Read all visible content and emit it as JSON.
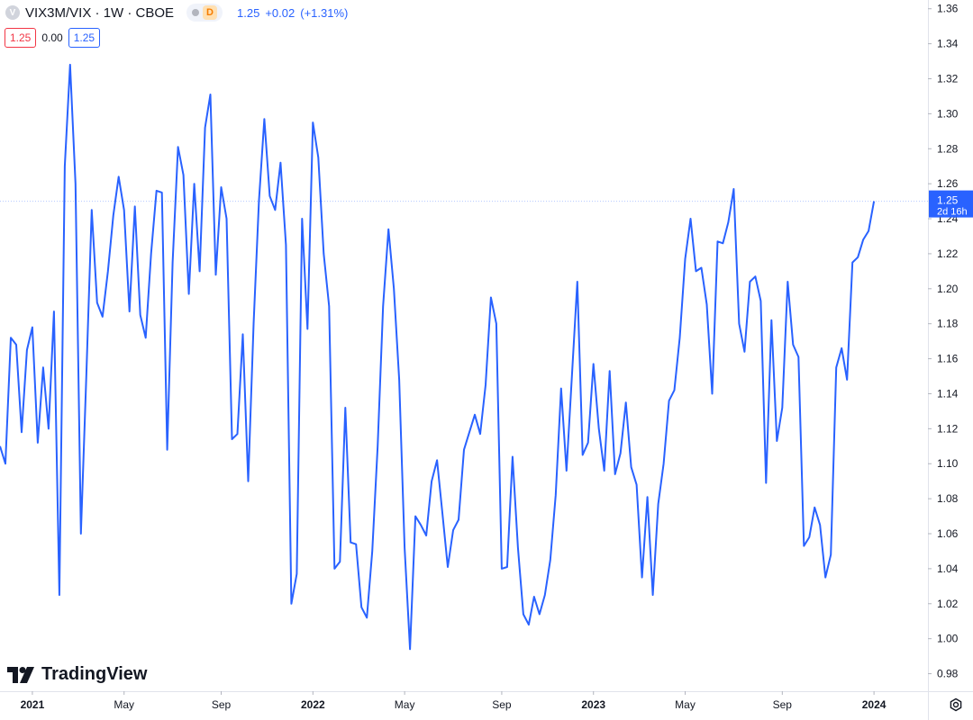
{
  "header": {
    "symbol_logo": "V",
    "title": "VIX3M/VIX · 1W · CBOE",
    "badge": "D",
    "last": "1.25",
    "change": "+0.02",
    "change_pct": "(+1.31%)"
  },
  "quote": {
    "bid": "1.25",
    "spread": "0.00",
    "ask": "1.25"
  },
  "price_label": {
    "value": "1.25",
    "countdown": "2d 16h"
  },
  "branding": {
    "name": "TradingView"
  },
  "icons": {
    "settings": "settings-icon",
    "logo": "tradingview-logo-icon"
  },
  "colors": {
    "line": "#2962ff",
    "grid": "#f0f3fa",
    "last_price_bg": "#2962ff",
    "bid": "#f23645",
    "ask": "#2962ff"
  },
  "chart_data": {
    "type": "line",
    "title": "VIX3M/VIX · 1W · CBOE",
    "xlabel": "",
    "ylabel": "",
    "ylim": [
      0.97,
      1.365
    ],
    "yticks": [
      0.98,
      1.0,
      1.02,
      1.04,
      1.06,
      1.08,
      1.1,
      1.12,
      1.14,
      1.16,
      1.18,
      1.2,
      1.22,
      1.24,
      1.26,
      1.28,
      1.3,
      1.32,
      1.34,
      1.36
    ],
    "ytick_labels": [
      "0.98",
      "1.00",
      "1.02",
      "1.04",
      "1.06",
      "1.08",
      "1.10",
      "1.12",
      "1.14",
      "1.16",
      "1.18",
      "1.20",
      "1.22",
      "1.24",
      "1.26",
      "1.28",
      "1.30",
      "1.32",
      "1.34",
      "1.36"
    ],
    "xticks": [
      {
        "label": "2021",
        "week": 0,
        "bold": true
      },
      {
        "label": "May",
        "week": 17,
        "bold": false
      },
      {
        "label": "Sep",
        "week": 35,
        "bold": false
      },
      {
        "label": "2022",
        "week": 52,
        "bold": true
      },
      {
        "label": "May",
        "week": 69,
        "bold": false
      },
      {
        "label": "Sep",
        "week": 87,
        "bold": false
      },
      {
        "label": "2023",
        "week": 104,
        "bold": true
      },
      {
        "label": "May",
        "week": 121,
        "bold": false
      },
      {
        "label": "Sep",
        "week": 139,
        "bold": false
      },
      {
        "label": "2024",
        "week": 156,
        "bold": true
      }
    ],
    "week_range": [
      -6,
      166
    ],
    "series": [
      {
        "values": [
          [
            -6,
            1.11
          ],
          [
            -5,
            1.1
          ],
          [
            -4,
            1.172
          ],
          [
            -3,
            1.168
          ],
          [
            -2,
            1.118
          ],
          [
            -1,
            1.165
          ],
          [
            0,
            1.178
          ],
          [
            1,
            1.112
          ],
          [
            2,
            1.155
          ],
          [
            3,
            1.12
          ],
          [
            4,
            1.187
          ],
          [
            5,
            1.025
          ],
          [
            6,
            1.27
          ],
          [
            7,
            1.328
          ],
          [
            8,
            1.26
          ],
          [
            9,
            1.06
          ],
          [
            10,
            1.15
          ],
          [
            11,
            1.245
          ],
          [
            12,
            1.192
          ],
          [
            13,
            1.184
          ],
          [
            14,
            1.21
          ],
          [
            15,
            1.242
          ],
          [
            16,
            1.264
          ],
          [
            17,
            1.245
          ],
          [
            18,
            1.187
          ],
          [
            19,
            1.247
          ],
          [
            20,
            1.185
          ],
          [
            21,
            1.172
          ],
          [
            22,
            1.22
          ],
          [
            23,
            1.256
          ],
          [
            24,
            1.255
          ],
          [
            25,
            1.108
          ],
          [
            26,
            1.215
          ],
          [
            27,
            1.281
          ],
          [
            28,
            1.265
          ],
          [
            29,
            1.197
          ],
          [
            30,
            1.26
          ],
          [
            31,
            1.21
          ],
          [
            32,
            1.292
          ],
          [
            33,
            1.311
          ],
          [
            34,
            1.208
          ],
          [
            35,
            1.258
          ],
          [
            36,
            1.24
          ],
          [
            37,
            1.114
          ],
          [
            38,
            1.117
          ],
          [
            39,
            1.174
          ],
          [
            40,
            1.09
          ],
          [
            41,
            1.18
          ],
          [
            42,
            1.25
          ],
          [
            43,
            1.297
          ],
          [
            44,
            1.253
          ],
          [
            45,
            1.245
          ],
          [
            46,
            1.272
          ],
          [
            47,
            1.225
          ],
          [
            48,
            1.02
          ],
          [
            49,
            1.037
          ],
          [
            50,
            1.24
          ],
          [
            51,
            1.177
          ],
          [
            52,
            1.295
          ],
          [
            53,
            1.275
          ],
          [
            54,
            1.22
          ],
          [
            55,
            1.19
          ],
          [
            56,
            1.04
          ],
          [
            57,
            1.044
          ],
          [
            58,
            1.132
          ],
          [
            59,
            1.055
          ],
          [
            60,
            1.054
          ],
          [
            61,
            1.018
          ],
          [
            62,
            1.012
          ],
          [
            63,
            1.05
          ],
          [
            64,
            1.11
          ],
          [
            65,
            1.19
          ],
          [
            66,
            1.234
          ],
          [
            67,
            1.2
          ],
          [
            68,
            1.148
          ],
          [
            69,
            1.052
          ],
          [
            70,
            0.994
          ],
          [
            71,
            1.07
          ],
          [
            72,
            1.065
          ],
          [
            73,
            1.059
          ],
          [
            74,
            1.09
          ],
          [
            75,
            1.102
          ],
          [
            76,
            1.072
          ],
          [
            77,
            1.041
          ],
          [
            78,
            1.062
          ],
          [
            79,
            1.068
          ],
          [
            80,
            1.108
          ],
          [
            81,
            1.118
          ],
          [
            82,
            1.128
          ],
          [
            83,
            1.117
          ],
          [
            84,
            1.145
          ],
          [
            85,
            1.195
          ],
          [
            86,
            1.18
          ],
          [
            87,
            1.04
          ],
          [
            88,
            1.041
          ],
          [
            89,
            1.104
          ],
          [
            90,
            1.052
          ],
          [
            91,
            1.014
          ],
          [
            92,
            1.008
          ],
          [
            93,
            1.024
          ],
          [
            94,
            1.014
          ],
          [
            95,
            1.025
          ],
          [
            96,
            1.045
          ],
          [
            97,
            1.082
          ],
          [
            98,
            1.143
          ],
          [
            99,
            1.096
          ],
          [
            100,
            1.15
          ],
          [
            101,
            1.204
          ],
          [
            102,
            1.105
          ],
          [
            103,
            1.112
          ],
          [
            104,
            1.157
          ],
          [
            105,
            1.12
          ],
          [
            106,
            1.096
          ],
          [
            107,
            1.153
          ],
          [
            108,
            1.094
          ],
          [
            109,
            1.106
          ],
          [
            110,
            1.135
          ],
          [
            111,
            1.098
          ],
          [
            112,
            1.088
          ],
          [
            113,
            1.035
          ],
          [
            114,
            1.081
          ],
          [
            115,
            1.025
          ],
          [
            116,
            1.077
          ],
          [
            117,
            1.1
          ],
          [
            118,
            1.136
          ],
          [
            119,
            1.142
          ],
          [
            120,
            1.172
          ],
          [
            121,
            1.217
          ],
          [
            122,
            1.24
          ],
          [
            123,
            1.21
          ],
          [
            124,
            1.212
          ],
          [
            125,
            1.191
          ],
          [
            126,
            1.14
          ],
          [
            127,
            1.227
          ],
          [
            128,
            1.226
          ],
          [
            129,
            1.238
          ],
          [
            130,
            1.257
          ],
          [
            131,
            1.18
          ],
          [
            132,
            1.164
          ],
          [
            133,
            1.204
          ],
          [
            134,
            1.207
          ],
          [
            135,
            1.193
          ],
          [
            136,
            1.089
          ],
          [
            137,
            1.182
          ],
          [
            138,
            1.113
          ],
          [
            139,
            1.132
          ],
          [
            140,
            1.204
          ],
          [
            141,
            1.168
          ],
          [
            142,
            1.161
          ],
          [
            143,
            1.053
          ],
          [
            144,
            1.058
          ],
          [
            145,
            1.075
          ],
          [
            146,
            1.065
          ],
          [
            147,
            1.035
          ],
          [
            148,
            1.048
          ],
          [
            149,
            1.155
          ],
          [
            150,
            1.166
          ],
          [
            151,
            1.148
          ],
          [
            152,
            1.215
          ],
          [
            153,
            1.218
          ],
          [
            154,
            1.228
          ],
          [
            155,
            1.233
          ],
          [
            156,
            1.25
          ]
        ]
      }
    ],
    "last_value": 1.25,
    "grid": false,
    "legend": "top-left"
  }
}
